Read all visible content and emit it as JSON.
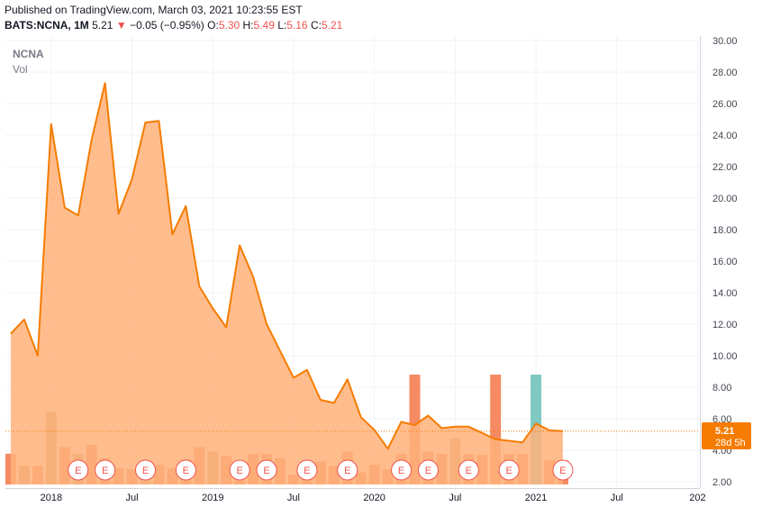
{
  "header": {
    "published": "Published on TradingView.com, March 03, 2021 10:23:55 EST",
    "symbol": "BATS:NCNA, 1M",
    "last": "5.21",
    "change": "−0.05 (−0.95%)",
    "o_label": "O:",
    "o_val": "5.30",
    "h_label": "H:",
    "h_val": "5.49",
    "l_label": "L:",
    "l_val": "5.16",
    "c_label": "C:",
    "c_val": "5.21"
  },
  "legend": {
    "symbol": "NCNA",
    "volume": "Vol"
  },
  "price_tag": {
    "price": "5.21",
    "countdown": "28d 5h"
  },
  "earnings_marker": "E",
  "colors": {
    "line": "#f57c00",
    "fill": "#ffb27a",
    "vol_red": "#f58a63",
    "vol_tan": "#c8a579",
    "vol_teal": "#80c9c2",
    "tag": "#f57c00"
  },
  "chart_data": {
    "type": "area",
    "x": [
      "2017-10",
      "2017-11",
      "2017-12",
      "2018-01",
      "2018-02",
      "2018-03",
      "2018-04",
      "2018-05",
      "2018-06",
      "2018-07",
      "2018-08",
      "2018-09",
      "2018-10",
      "2018-11",
      "2018-12",
      "2019-01",
      "2019-02",
      "2019-03",
      "2019-04",
      "2019-05",
      "2019-06",
      "2019-07",
      "2019-08",
      "2019-09",
      "2019-10",
      "2019-11",
      "2019-12",
      "2020-01",
      "2020-02",
      "2020-03",
      "2020-04",
      "2020-05",
      "2020-06",
      "2020-07",
      "2020-08",
      "2020-09",
      "2020-10",
      "2020-11",
      "2020-12",
      "2021-01",
      "2021-02",
      "2021-03"
    ],
    "close": [
      11.4,
      12.3,
      10.0,
      24.7,
      19.4,
      18.9,
      23.7,
      27.3,
      19.0,
      21.2,
      24.8,
      24.9,
      17.7,
      19.5,
      14.4,
      13.0,
      11.8,
      17.0,
      15.0,
      12.0,
      10.3,
      8.6,
      9.1,
      7.2,
      7.0,
      8.5,
      6.1,
      5.3,
      4.1,
      5.8,
      5.6,
      6.2,
      5.4,
      5.5,
      5.5,
      5.1,
      4.7,
      4.6,
      4.5,
      5.7,
      5.26,
      5.21
    ],
    "volume_pane": {
      "series_name": "Vol",
      "bar_colors": [
        "red",
        "tan",
        "red",
        "tan",
        "red",
        "tan",
        "red",
        "red",
        "red",
        "red",
        "tan",
        "red",
        "red",
        "red",
        "red",
        "tan",
        "red",
        "red",
        "red",
        "red",
        "red",
        "red",
        "red",
        "red",
        "red",
        "red",
        "red",
        "red",
        "red",
        "red",
        "red",
        "red",
        "red",
        "tan",
        "red",
        "red",
        "red",
        "red",
        "red",
        "teal",
        "red",
        "red"
      ],
      "relative_heights": [
        0.28,
        0.17,
        0.17,
        0.66,
        0.34,
        0.28,
        0.36,
        0.24,
        0.15,
        0.14,
        0.11,
        0.18,
        0.15,
        0.23,
        0.34,
        0.3,
        0.26,
        0.2,
        0.28,
        0.28,
        0.24,
        0.09,
        0.11,
        0.21,
        0.17,
        0.3,
        0.11,
        0.18,
        0.14,
        0.28,
        1.0,
        0.3,
        0.28,
        0.42,
        0.28,
        0.27,
        1.0,
        0.28,
        0.28,
        1.0,
        0.22,
        0.22
      ]
    },
    "earnings_markers": [
      "2018-03",
      "2018-05",
      "2018-08",
      "2018-11",
      "2019-03",
      "2019-05",
      "2019-08",
      "2019-11",
      "2020-03",
      "2020-05",
      "2020-08",
      "2020-11",
      "2021-03"
    ],
    "y_ticks": [
      "30.00",
      "28.00",
      "26.00",
      "24.00",
      "22.00",
      "20.00",
      "18.00",
      "16.00",
      "14.00",
      "12.00",
      "10.00",
      "8.00",
      "6.00",
      "4.00",
      "2.00"
    ],
    "x_ticks": [
      "2018",
      "Jul",
      "2019",
      "Jul",
      "2020",
      "Jul",
      "2021",
      "Jul",
      "202"
    ],
    "ylim": [
      2,
      30
    ],
    "grid": true,
    "last_price": 5.21
  }
}
